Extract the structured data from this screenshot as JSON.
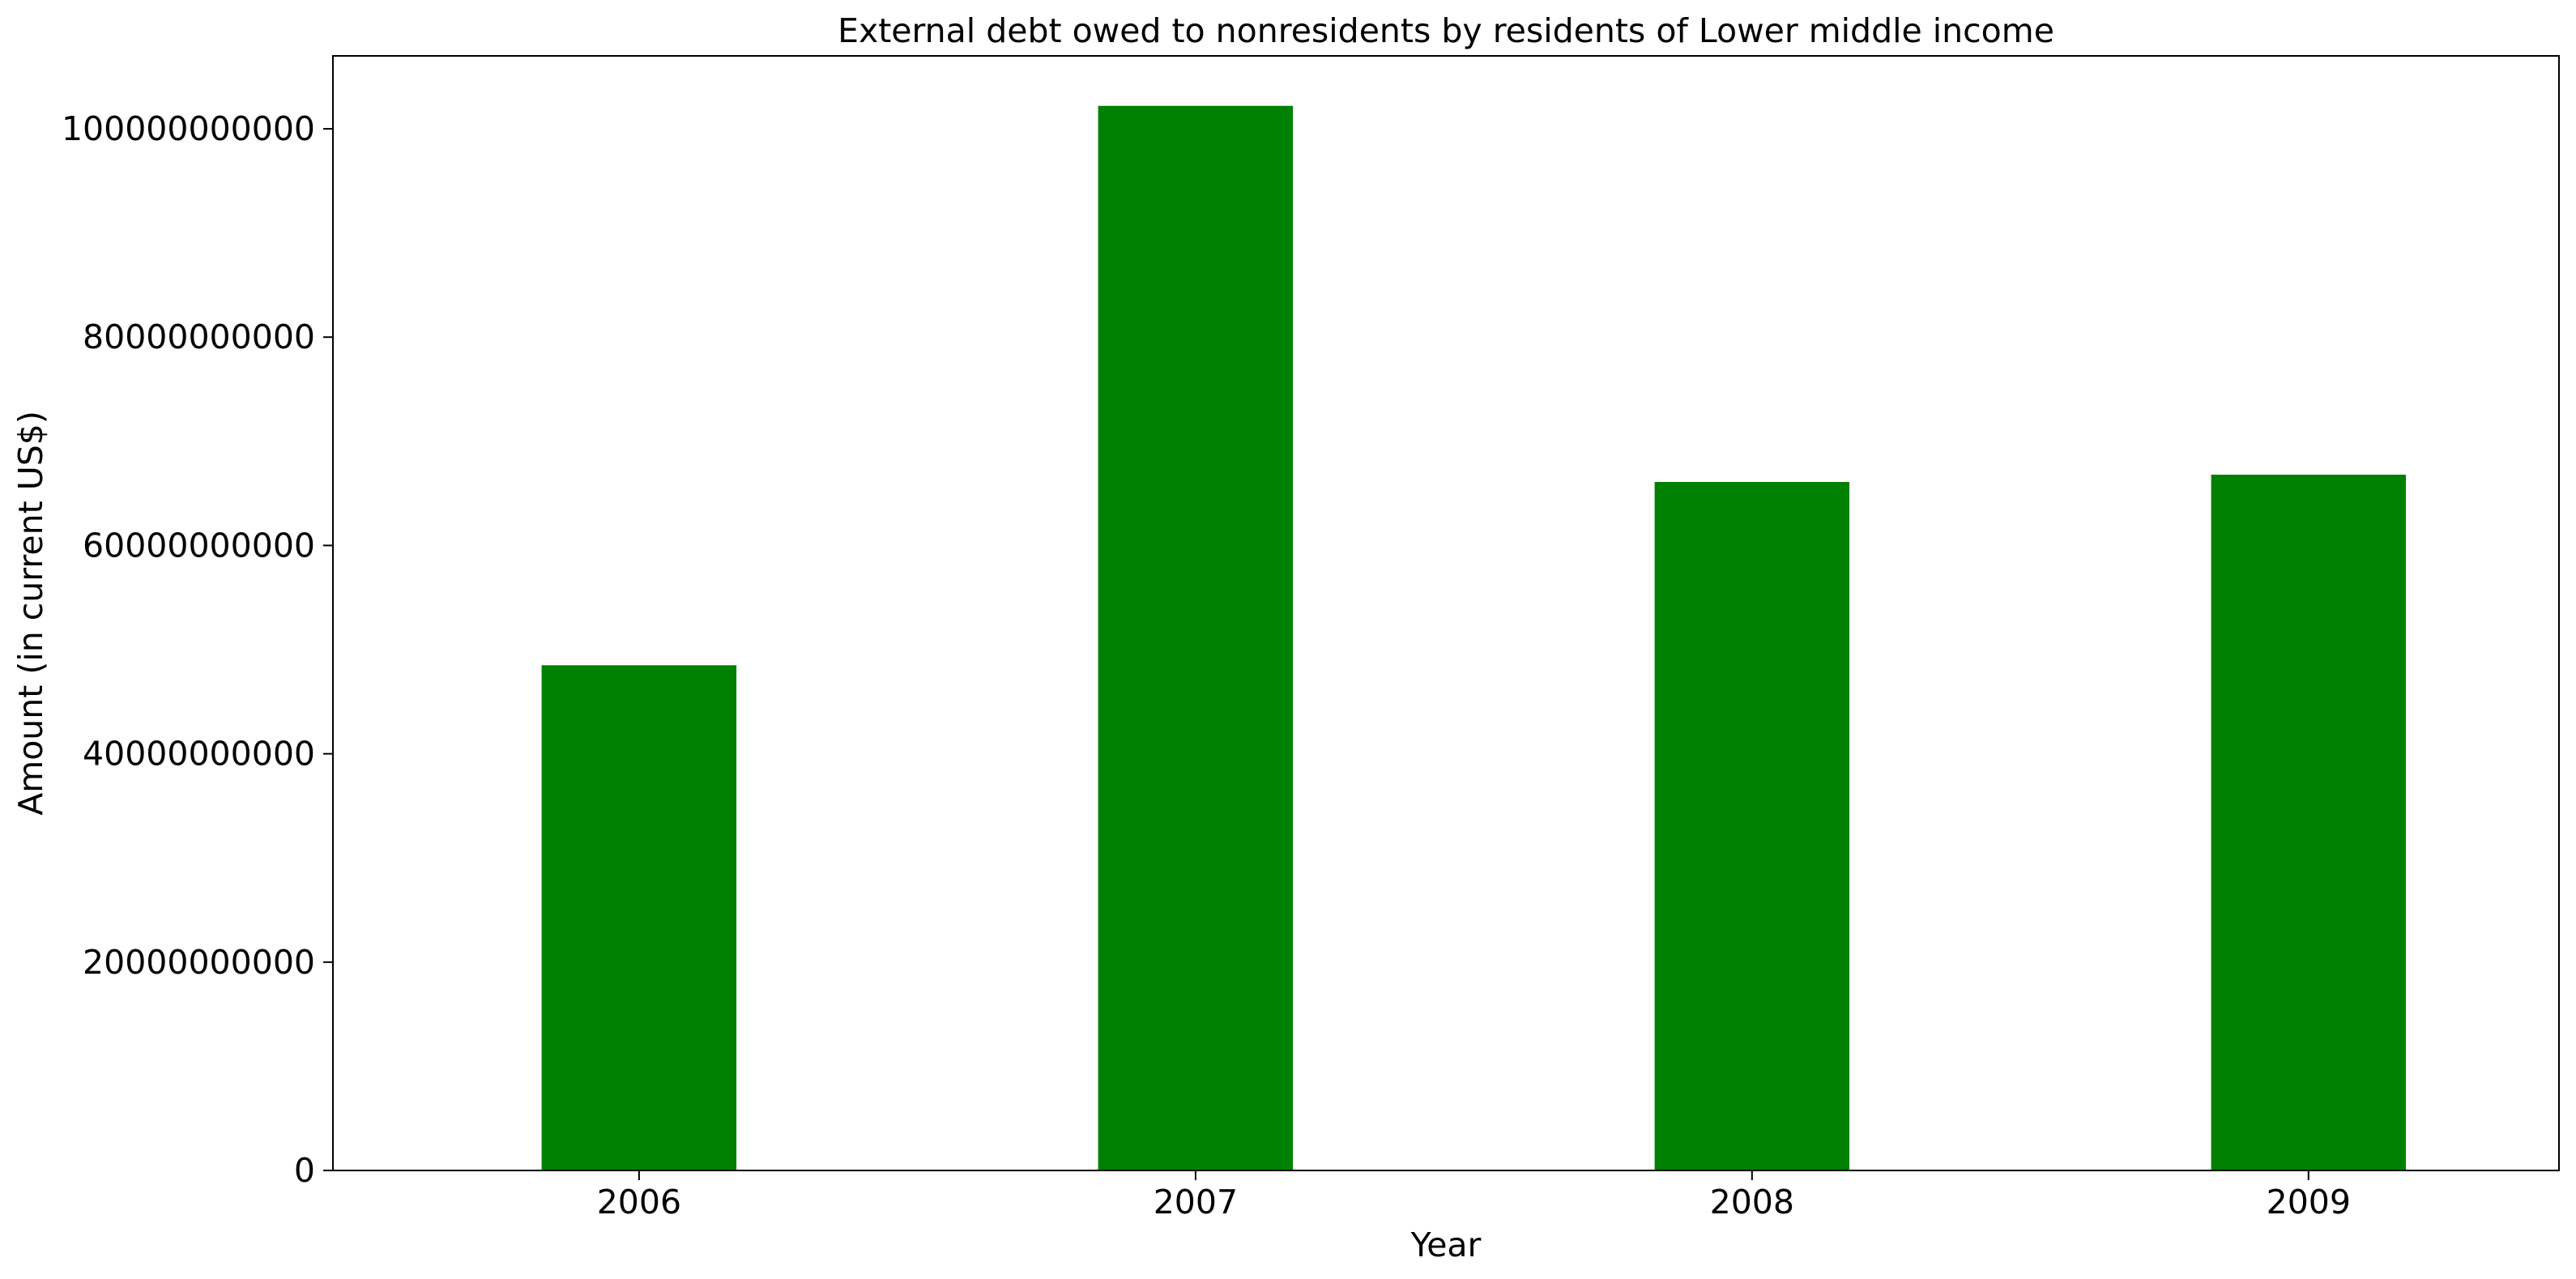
{
  "chart_data": {
    "type": "bar",
    "title": "External debt owed to nonresidents by residents of Lower middle income",
    "xlabel": "Year",
    "ylabel": "Amount (in current US$)",
    "categories": [
      "2006",
      "2007",
      "2008",
      "2009"
    ],
    "series": [
      {
        "values": [
          48500000000,
          102200000000,
          66100000000,
          66800000000
        ]
      }
    ],
    "ylim": [
      0,
      107000000000
    ],
    "yticks": [
      0,
      20000000000,
      40000000000,
      60000000000,
      80000000000,
      100000000000
    ],
    "ytick_labels": [
      "0",
      "20000000000",
      "40000000000",
      "60000000000",
      "80000000000",
      "100000000000"
    ],
    "bar_color": "#008000",
    "grid": false,
    "legend": "none"
  }
}
